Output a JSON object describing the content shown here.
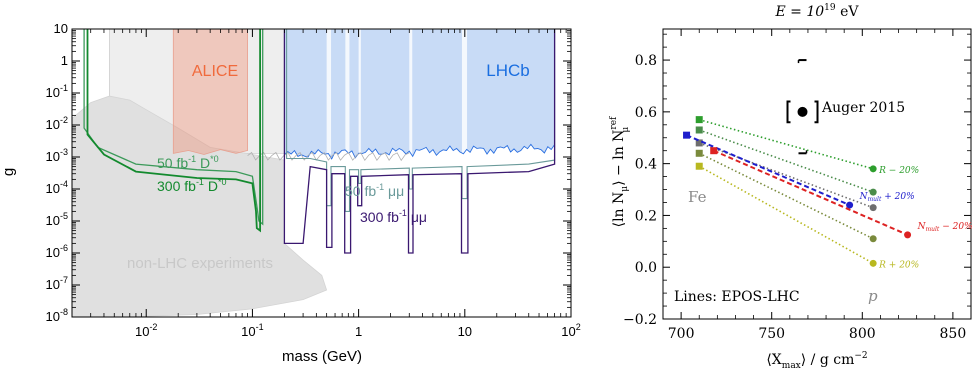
{
  "chart_data": [
    {
      "type": "area",
      "xlabel": "mass (GeV)",
      "ylabel": "g",
      "x_scale": "log",
      "y_scale": "log",
      "xlim": [
        0.002,
        100
      ],
      "ylim": [
        1e-08,
        10
      ],
      "xticks": [
        {
          "v": 0.01,
          "label": "10",
          "sup": "-2"
        },
        {
          "v": 0.1,
          "label": "10",
          "sup": "-1"
        },
        {
          "v": 1,
          "label": "1",
          "sup": ""
        },
        {
          "v": 10,
          "label": "10",
          "sup": ""
        },
        {
          "v": 100,
          "label": "10",
          "sup": "2"
        }
      ],
      "yticks": [
        {
          "v": 1e-08,
          "label": "10",
          "sup": "-8"
        },
        {
          "v": 1e-07,
          "label": "10",
          "sup": "-7"
        },
        {
          "v": 1e-06,
          "label": "10",
          "sup": "-6"
        },
        {
          "v": 1e-05,
          "label": "10",
          "sup": "-5"
        },
        {
          "v": 0.0001,
          "label": "10",
          "sup": "-4"
        },
        {
          "v": 0.001,
          "label": "10",
          "sup": "-3"
        },
        {
          "v": 0.01,
          "label": "10",
          "sup": "-2"
        },
        {
          "v": 0.1,
          "label": "10",
          "sup": "-1"
        },
        {
          "v": 1,
          "label": "1",
          "sup": ""
        },
        {
          "v": 10,
          "label": "10",
          "sup": ""
        }
      ],
      "regions": [
        {
          "name": "non-LHC experiments",
          "color": "#e0e0e0",
          "x_range": [
            0.002,
            0.6
          ],
          "y_range": [
            1e-08,
            0.1
          ]
        },
        {
          "name": "ALICE",
          "color": "#f08060",
          "x_range": [
            0.018,
            0.09
          ],
          "y_range": [
            0.0015,
            10
          ]
        },
        {
          "name": "LHCb",
          "color": "#3a7fe0",
          "x_range": [
            0.2,
            70
          ],
          "y_range": [
            0.0015,
            10
          ]
        }
      ],
      "annotations": [
        {
          "text": "ALICE",
          "color": "#f06a3c"
        },
        {
          "text": "LHCb",
          "color": "#1a6ee0"
        },
        {
          "text": "non-LHC experiments",
          "color": "#c8c8c8"
        }
      ],
      "series": [
        {
          "color": "#3c9a5a",
          "label_main": "50 fb",
          "label_sup": "-1",
          "label_tail": " D",
          "label_sup2": "*0"
        },
        {
          "color": "#138a2e",
          "label_main": "300 fb",
          "label_sup": "-1",
          "label_tail": " D",
          "label_sup2": "*0"
        },
        {
          "color": "#6a9a9a",
          "label_main": "50 fb",
          "label_sup": "-1",
          "label_tail": " μμ",
          "label_sup2": ""
        },
        {
          "color": "#3a1870",
          "label_main": "300 fb",
          "label_sup": "-1",
          "label_tail": " μμ",
          "label_sup2": ""
        }
      ]
    },
    {
      "type": "scatter",
      "xlabel": "⟨X",
      "xlabel_sub": "max",
      "xlabel_tail": "⟩ / g cm",
      "xlabel_sup": "−2",
      "ylabel_parts": {
        "open": "⟨ln N",
        "sub": "μ",
        "mid": "⟩ − ln N",
        "sup": "ref",
        "sub2": "μ"
      },
      "top_label": "E = 10",
      "top_label_sup": "19",
      "top_label_unit": " eV",
      "xlim": [
        690,
        860
      ],
      "ylim": [
        -0.2,
        0.92
      ],
      "xticks": [
        700,
        750,
        800,
        850
      ],
      "yticks": [
        "−0.2",
        "0.0",
        "0.2",
        "0.4",
        "0.6",
        "0.8"
      ],
      "ytick_values": [
        -0.2,
        0.0,
        0.2,
        0.4,
        0.6,
        0.8
      ],
      "lines_label": "Lines: EPOS-LHC",
      "fe_label": "Fe",
      "p_label": "p",
      "auger": {
        "label": "Auger 2015",
        "x": 767,
        "y": 0.6,
        "err_low": 0.44,
        "err_high": 0.8,
        "sys_low": 0.56,
        "sys_high": 0.64
      },
      "lines": [
        {
          "color": "#2d9e2d",
          "x": [
            710,
            806
          ],
          "y": [
            0.57,
            0.38
          ],
          "label": "R − 20%"
        },
        {
          "color": "#4a8c4a",
          "x": [
            710,
            806
          ],
          "y": [
            0.53,
            0.29
          ],
          "label": ""
        },
        {
          "color": "#6e6e6e",
          "x": [
            710,
            806
          ],
          "y": [
            0.48,
            0.23
          ],
          "label": ""
        },
        {
          "color": "#1e1ecc",
          "x": [
            703,
            793
          ],
          "y": [
            0.51,
            0.24
          ],
          "label": "N_mult + 20%"
        },
        {
          "color": "#dd2222",
          "x": [
            718,
            825
          ],
          "y": [
            0.45,
            0.125
          ],
          "label": "N_mult − 20%"
        },
        {
          "color": "#7a8a3c",
          "x": [
            710,
            806
          ],
          "y": [
            0.44,
            0.11
          ],
          "label": ""
        },
        {
          "color": "#b8b820",
          "x": [
            710,
            806
          ],
          "y": [
            0.39,
            0.015
          ],
          "label": "R + 20%"
        }
      ]
    }
  ]
}
